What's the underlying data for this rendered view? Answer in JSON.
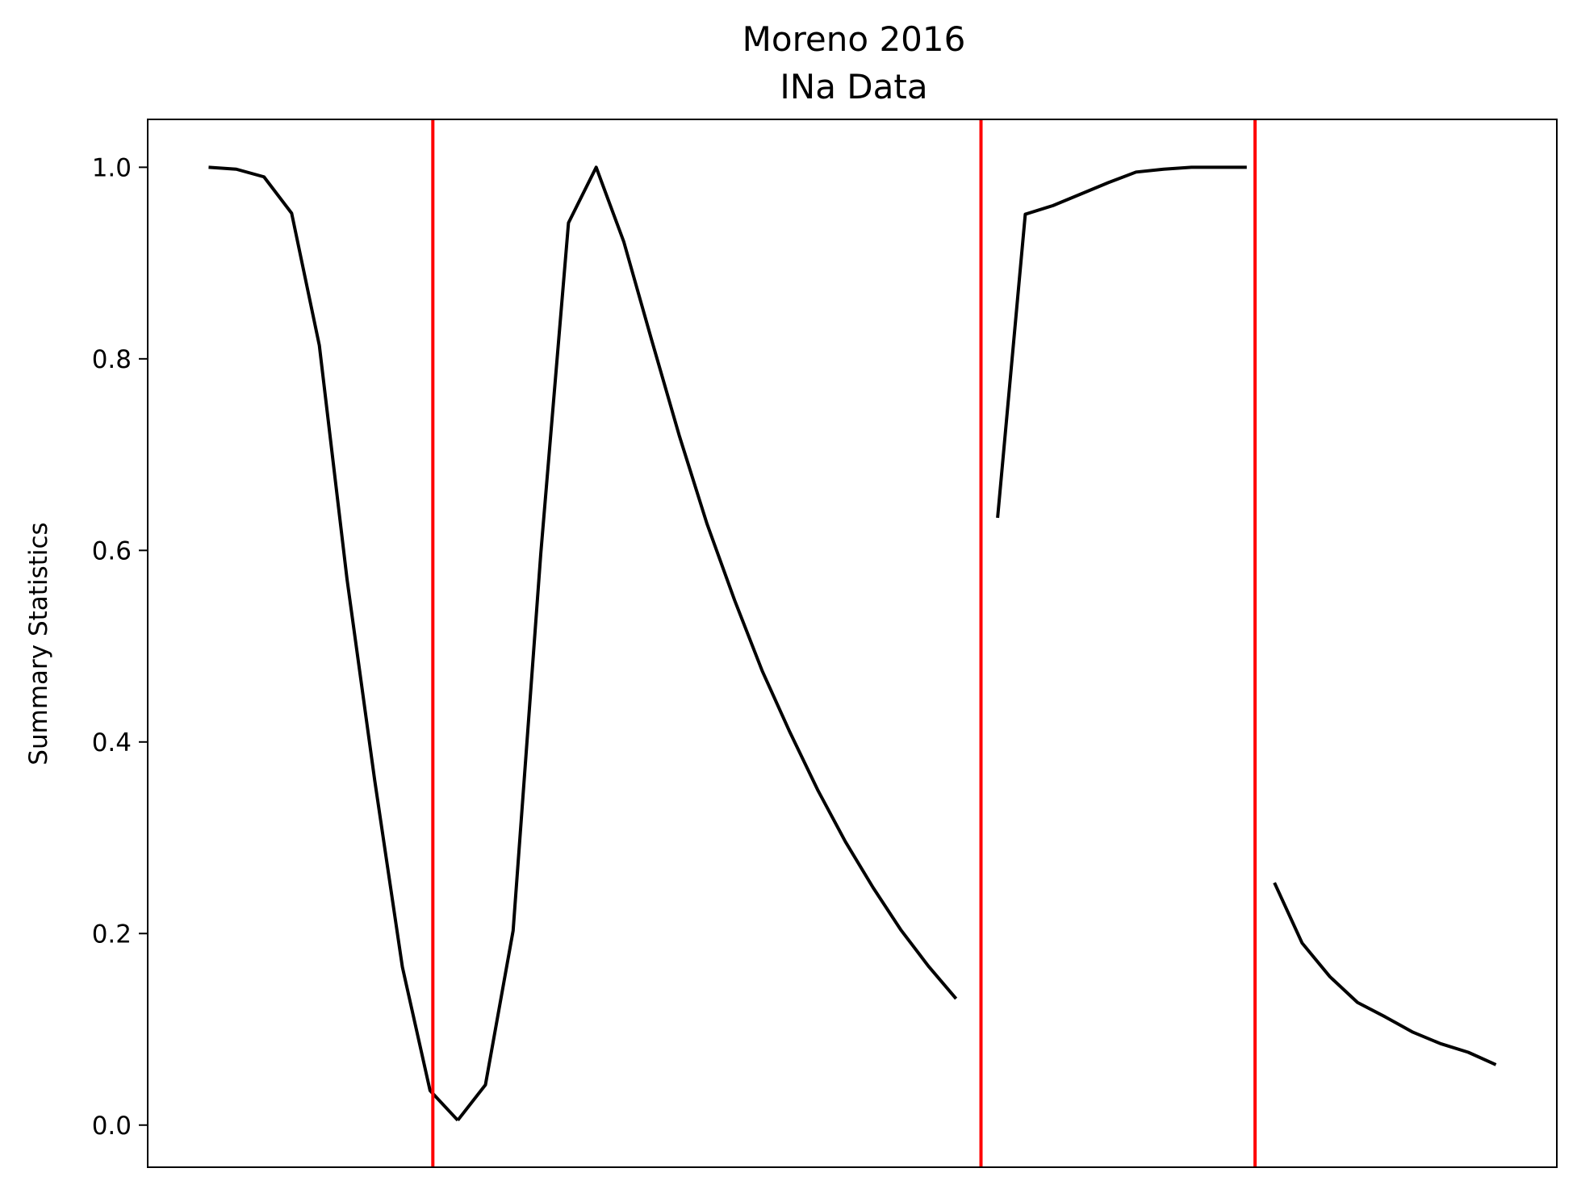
{
  "chart_data": {
    "type": "line",
    "title": "Moreno 2016",
    "subtitle": "INa Data",
    "xlabel": "",
    "ylabel": "Summary Statistics",
    "ylim": [
      -0.044,
      1.05
    ],
    "xlim": [
      -2.2,
      48.7
    ],
    "yticks": [
      "0.0",
      "0.2",
      "0.4",
      "0.6",
      "0.8",
      "1.0"
    ],
    "ytick_values": [
      0.0,
      0.2,
      0.4,
      0.6,
      0.8,
      1.0
    ],
    "grid": false,
    "line_color": "#000000",
    "separator_color": "#ff0000",
    "separators": [
      8.1,
      27.9,
      37.8
    ],
    "series": [
      {
        "x": [
          0,
          1,
          2,
          3,
          4,
          5,
          6,
          7,
          8,
          9,
          10
        ],
        "y": [
          1.0,
          0.998,
          0.99,
          0.952,
          0.814,
          0.57,
          0.36,
          0.165,
          0.036,
          0.005,
          null
        ]
      },
      {
        "x": [
          9,
          10,
          11,
          12,
          13,
          14,
          15,
          16,
          17,
          18,
          19,
          20,
          21,
          22,
          23,
          24,
          25,
          26,
          27
        ],
        "y": [
          0.005,
          0.042,
          0.203,
          0.597,
          0.942,
          1.0,
          0.922,
          0.82,
          0.72,
          0.628,
          0.548,
          0.474,
          0.41,
          0.35,
          0.296,
          0.248,
          0.204,
          0.166,
          0.132
        ]
      },
      {
        "x": [
          28.5,
          29.5,
          30.5,
          31.5,
          32.5,
          33.5,
          34.5,
          35.5,
          36.5,
          37.5
        ],
        "y": [
          0.634,
          0.951,
          0.96,
          0.972,
          0.984,
          0.995,
          0.998,
          1.0,
          1.0,
          1.0
        ]
      },
      {
        "x": [
          38.5,
          39.5,
          40.5,
          41.5,
          42.5,
          43.5,
          44.5,
          45.5,
          46.5
        ],
        "y": [
          0.253,
          0.19,
          0.155,
          0.128,
          0.113,
          0.097,
          0.085,
          0.076,
          0.063
        ]
      }
    ]
  }
}
